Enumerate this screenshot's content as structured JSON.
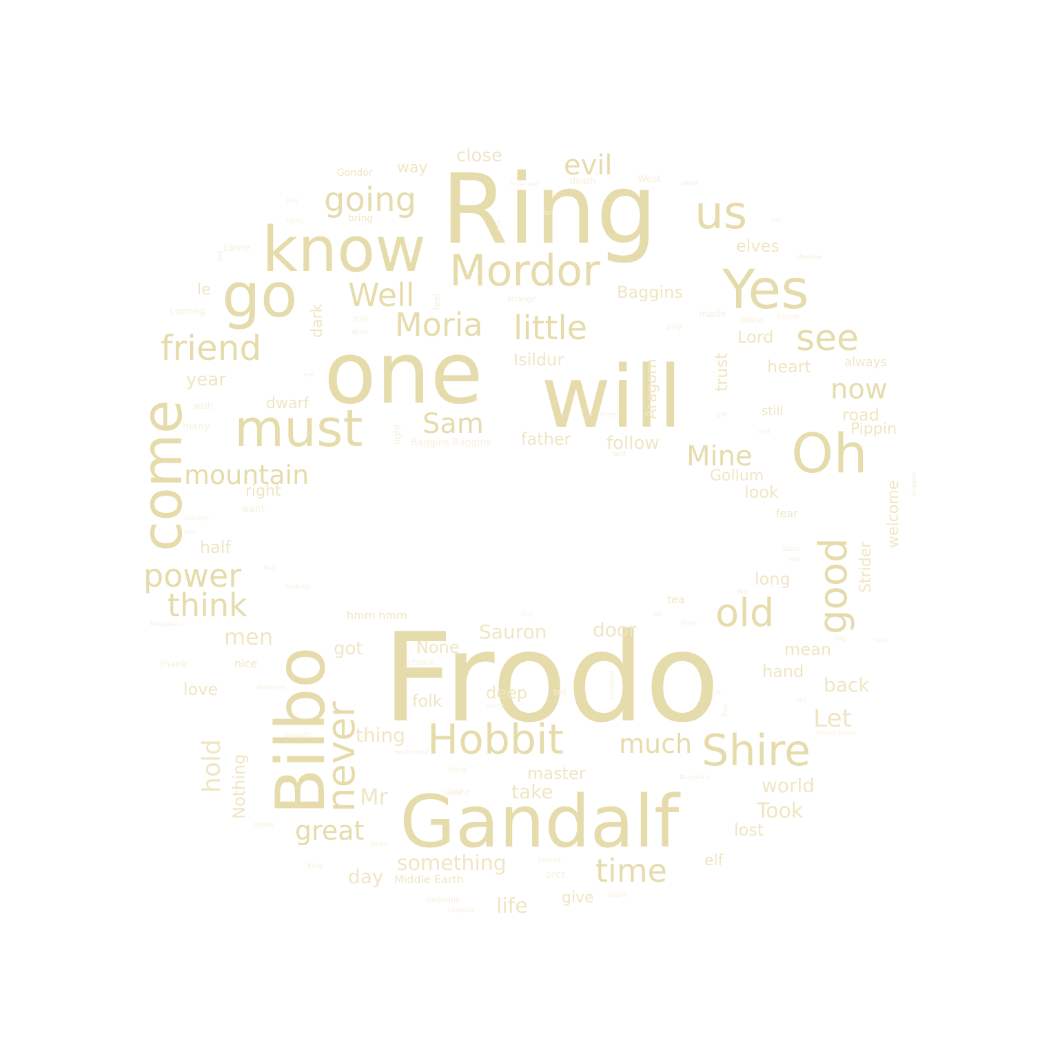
{
  "palette": {
    "background": "#ffffff",
    "word_strong": "#e6dbaa",
    "word_soft": "#efe6c3",
    "word_faint": "#f6f0dd"
  },
  "shape": "ring",
  "words": [
    {
      "text": "Frodo",
      "tone": "strong"
    },
    {
      "text": "Ring",
      "tone": "strong"
    },
    {
      "text": "one",
      "tone": "strong"
    },
    {
      "text": "will",
      "tone": "strong"
    },
    {
      "text": "Gandalf",
      "tone": "strong"
    },
    {
      "text": "Bilbo",
      "tone": "strong"
    },
    {
      "text": "know",
      "tone": "strong"
    },
    {
      "text": "go",
      "tone": "strong"
    },
    {
      "text": "come",
      "tone": "strong"
    },
    {
      "text": "Yes",
      "tone": "strong"
    },
    {
      "text": "Oh",
      "tone": "strong"
    },
    {
      "text": "must",
      "tone": "strong"
    },
    {
      "text": "Mordor",
      "tone": "strong"
    },
    {
      "text": "Hobbit",
      "tone": "strong"
    },
    {
      "text": "Shire",
      "tone": "strong"
    },
    {
      "text": "good",
      "tone": "strong"
    },
    {
      "text": "us",
      "tone": "strong"
    },
    {
      "text": "never",
      "tone": "strong"
    },
    {
      "text": "old",
      "tone": "strong"
    },
    {
      "text": "friend",
      "tone": "strong"
    },
    {
      "text": "little",
      "tone": "strong"
    },
    {
      "text": "see",
      "tone": "strong"
    },
    {
      "text": "Moria",
      "tone": "strong"
    },
    {
      "text": "Well",
      "tone": "strong"
    },
    {
      "text": "going",
      "tone": "strong"
    },
    {
      "text": "power",
      "tone": "strong"
    },
    {
      "text": "think",
      "tone": "strong"
    },
    {
      "text": "time",
      "tone": "strong"
    },
    {
      "text": "evil",
      "tone": "strong"
    },
    {
      "text": "Sam",
      "tone": "strong"
    },
    {
      "text": "now",
      "tone": "strong"
    },
    {
      "text": "Mine",
      "tone": "strong"
    },
    {
      "text": "mountain",
      "tone": "strong"
    },
    {
      "text": "great",
      "tone": "strong"
    },
    {
      "text": "much",
      "tone": "strong"
    },
    {
      "text": "hold",
      "tone": "soft"
    },
    {
      "text": "Mr",
      "tone": "soft"
    },
    {
      "text": "Let",
      "tone": "soft"
    },
    {
      "text": "something",
      "tone": "soft"
    },
    {
      "text": "Took",
      "tone": "soft"
    },
    {
      "text": "door",
      "tone": "soft"
    },
    {
      "text": "Sauron",
      "tone": "soft"
    },
    {
      "text": "men",
      "tone": "soft"
    },
    {
      "text": "Nothing",
      "tone": "soft"
    },
    {
      "text": "thing",
      "tone": "soft"
    },
    {
      "text": "take",
      "tone": "soft"
    },
    {
      "text": "world",
      "tone": "soft"
    },
    {
      "text": "back",
      "tone": "soft"
    },
    {
      "text": "day",
      "tone": "soft"
    },
    {
      "text": "life",
      "tone": "soft"
    },
    {
      "text": "Aragorn",
      "tone": "soft"
    },
    {
      "text": "Isildur",
      "tone": "soft"
    },
    {
      "text": "Baggins",
      "tone": "soft"
    },
    {
      "text": "close",
      "tone": "soft"
    },
    {
      "text": "trust",
      "tone": "soft"
    },
    {
      "text": "Strider",
      "tone": "soft"
    },
    {
      "text": "welcome",
      "tone": "soft"
    },
    {
      "text": "follow",
      "tone": "soft"
    },
    {
      "text": "road",
      "tone": "soft"
    },
    {
      "text": "Gollum",
      "tone": "soft"
    },
    {
      "text": "Lord",
      "tone": "soft"
    },
    {
      "text": "heart",
      "tone": "soft"
    },
    {
      "text": "year",
      "tone": "soft"
    },
    {
      "text": "half",
      "tone": "soft"
    },
    {
      "text": "long",
      "tone": "soft"
    },
    {
      "text": "deep",
      "tone": "soft"
    },
    {
      "text": "got",
      "tone": "soft"
    },
    {
      "text": "None",
      "tone": "soft"
    },
    {
      "text": "master",
      "tone": "soft"
    },
    {
      "text": "lost",
      "tone": "soft"
    },
    {
      "text": "elf",
      "tone": "soft"
    },
    {
      "text": "give",
      "tone": "soft"
    },
    {
      "text": "love",
      "tone": "soft"
    },
    {
      "text": "folk",
      "tone": "soft"
    },
    {
      "text": "father",
      "tone": "soft"
    },
    {
      "text": "elves",
      "tone": "soft"
    },
    {
      "text": "look",
      "tone": "soft"
    },
    {
      "text": "right",
      "tone": "soft"
    },
    {
      "text": "dwarf",
      "tone": "soft"
    },
    {
      "text": "mean",
      "tone": "soft"
    },
    {
      "text": "hand",
      "tone": "soft"
    },
    {
      "text": "Pippin",
      "tone": "soft"
    },
    {
      "text": "way",
      "tone": "soft"
    },
    {
      "text": "dark",
      "tone": "soft"
    },
    {
      "text": "le",
      "tone": "soft"
    },
    {
      "text": "Middle Earth",
      "tone": "soft"
    },
    {
      "text": "always",
      "tone": "soft"
    },
    {
      "text": "still",
      "tone": "soft"
    },
    {
      "text": "fear",
      "tone": "soft"
    },
    {
      "text": "tea",
      "tone": "soft"
    },
    {
      "text": "nice",
      "tone": "soft"
    },
    {
      "text": "hmm hmm",
      "tone": "soft"
    },
    {
      "text": "Gondor",
      "tone": "soft"
    },
    {
      "text": "bring",
      "tone": "soft"
    },
    {
      "text": "came",
      "tone": "faint"
    },
    {
      "text": "coming",
      "tone": "faint"
    },
    {
      "text": "many",
      "tone": "faint"
    },
    {
      "text": "want",
      "tone": "faint"
    },
    {
      "text": "thank",
      "tone": "faint"
    },
    {
      "text": "wish",
      "tone": "faint"
    },
    {
      "text": "light",
      "tone": "faint"
    },
    {
      "text": "Baggins Baggins",
      "tone": "faint"
    },
    {
      "text": "orcs",
      "tone": "faint"
    },
    {
      "text": "made",
      "tone": "faint"
    },
    {
      "text": "West",
      "tone": "faint"
    },
    {
      "text": "death",
      "tone": "faint"
    },
    {
      "text": "fire",
      "tone": "faint"
    },
    {
      "text": "Gimli",
      "tone": "faint"
    },
    {
      "text": "yet",
      "tone": "faint"
    },
    {
      "text": "feel",
      "tone": "faint"
    },
    {
      "text": "strange",
      "tone": "faint"
    },
    {
      "text": "stay",
      "tone": "faint"
    },
    {
      "text": "alive",
      "tone": "faint"
    },
    {
      "text": "pity",
      "tone": "faint"
    },
    {
      "text": "place",
      "tone": "faint"
    },
    {
      "text": "cousin",
      "tone": "faint"
    },
    {
      "text": "shadow",
      "tone": "faint"
    },
    {
      "text": "word",
      "tone": "faint"
    },
    {
      "text": "run",
      "tone": "faint"
    },
    {
      "text": "dragon",
      "tone": "faint"
    },
    {
      "text": "secret",
      "tone": "faint"
    },
    {
      "text": "Underhill",
      "tone": "faint"
    },
    {
      "text": "Legolas",
      "tone": "faint"
    },
    {
      "text": "Night",
      "tone": "faint"
    },
    {
      "text": "open",
      "tone": "faint"
    },
    {
      "text": "speak",
      "tone": "faint"
    },
    {
      "text": "beyond",
      "tone": "faint"
    },
    {
      "text": "last",
      "tone": "faint"
    },
    {
      "text": "living",
      "tone": "faint"
    },
    {
      "text": "destroyed",
      "tone": "faint"
    },
    {
      "text": "thought",
      "tone": "faint"
    },
    {
      "text": "dwarves",
      "tone": "faint"
    },
    {
      "text": "sorry",
      "tone": "faint"
    },
    {
      "text": "choice",
      "tone": "faint"
    },
    {
      "text": "tell",
      "tone": "faint"
    },
    {
      "text": "Ringbearer",
      "tone": "faint"
    },
    {
      "text": "looking",
      "tone": "faint"
    },
    {
      "text": "find",
      "tone": "faint"
    },
    {
      "text": "brought",
      "tone": "faint"
    },
    {
      "text": "food",
      "tone": "faint"
    },
    {
      "text": "four",
      "tone": "faint"
    },
    {
      "text": "Ah",
      "tone": "faint"
    },
    {
      "text": "leave",
      "tone": "faint"
    },
    {
      "text": "need",
      "tone": "faint"
    },
    {
      "text": "big",
      "tone": "faint"
    },
    {
      "text": "kill",
      "tone": "faint"
    },
    {
      "text": "say",
      "tone": "faint"
    },
    {
      "text": "Mount Doom",
      "tone": "faint"
    },
    {
      "text": "Baggins's",
      "tone": "faint"
    },
    {
      "text": "Merry",
      "tone": "faint"
    },
    {
      "text": "land",
      "tone": "faint"
    },
    {
      "text": "fate",
      "tone": "faint"
    },
    {
      "text": "help",
      "tone": "faint"
    },
    {
      "text": "blade",
      "tone": "faint"
    },
    {
      "text": "Rivendell",
      "tone": "faint"
    },
    {
      "text": "Boy",
      "tone": "faint"
    },
    {
      "text": "gift",
      "tone": "faint"
    },
    {
      "text": "end",
      "tone": "faint"
    },
    {
      "text": "King",
      "tone": "faint"
    },
    {
      "text": "far",
      "tone": "faint"
    },
    {
      "text": "eye",
      "tone": "faint"
    },
    {
      "text": "hundred",
      "tone": "faint"
    },
    {
      "text": "ask",
      "tone": "faint"
    }
  ]
}
